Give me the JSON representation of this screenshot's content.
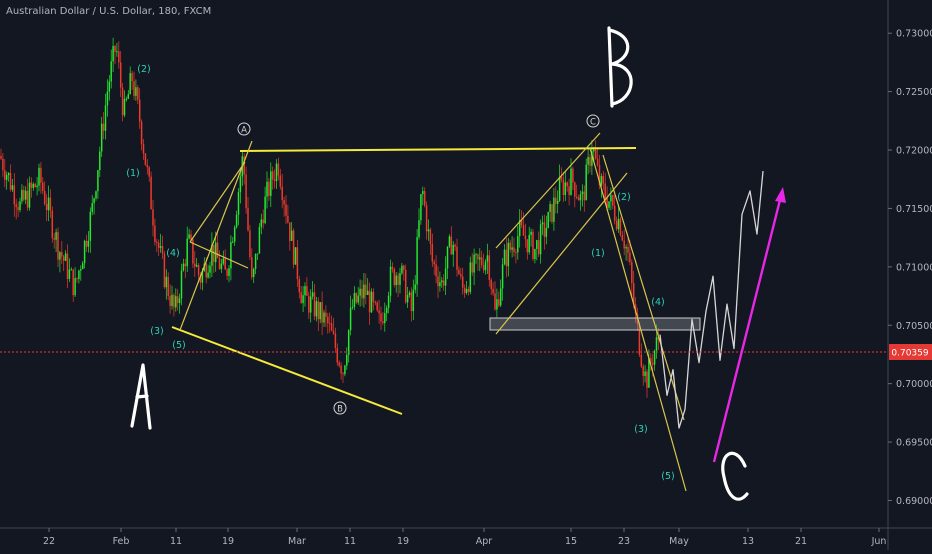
{
  "chart_data": {
    "type": "candlestick",
    "title": "Australian Dollar / U.S. Dollar, 180, FXCM",
    "ylim": [
      0.6885,
      0.7325
    ],
    "y_ticks": [
      "0.73000",
      "0.72500",
      "0.72000",
      "0.71500",
      "0.71000",
      "0.70500",
      "0.70000",
      "0.69500",
      "0.69000"
    ],
    "y_tick_values": [
      0.73,
      0.725,
      0.72,
      0.715,
      0.71,
      0.705,
      0.7,
      0.695,
      0.69
    ],
    "x_ticks": [
      "22",
      "Feb",
      "11",
      "19",
      "Mar",
      "11",
      "19",
      "Apr",
      "15",
      "23",
      "May",
      "13",
      "21",
      "Jun"
    ],
    "current_price": {
      "label": "0.70359",
      "value": 0.70359,
      "color": "#e53935"
    },
    "price_path": [
      [
        0,
        0.7195
      ],
      [
        20,
        0.7152
      ],
      [
        40,
        0.7175
      ],
      [
        58,
        0.7118
      ],
      [
        75,
        0.7082
      ],
      [
        92,
        0.7148
      ],
      [
        108,
        0.7255
      ],
      [
        116,
        0.729
      ],
      [
        124,
        0.723
      ],
      [
        132,
        0.7262
      ],
      [
        140,
        0.7225
      ],
      [
        148,
        0.7175
      ],
      [
        155,
        0.7132
      ],
      [
        165,
        0.709
      ],
      [
        175,
        0.706
      ],
      [
        188,
        0.7122
      ],
      [
        200,
        0.709
      ],
      [
        212,
        0.7115
      ],
      [
        226,
        0.7092
      ],
      [
        236,
        0.715
      ],
      [
        243,
        0.7195
      ],
      [
        252,
        0.7082
      ],
      [
        262,
        0.7145
      ],
      [
        268,
        0.7165
      ],
      [
        278,
        0.719
      ],
      [
        290,
        0.713
      ],
      [
        302,
        0.7075
      ],
      [
        315,
        0.7065
      ],
      [
        328,
        0.705
      ],
      [
        343,
        0.7012
      ],
      [
        352,
        0.7065
      ],
      [
        365,
        0.708
      ],
      [
        380,
        0.705
      ],
      [
        390,
        0.709
      ],
      [
        400,
        0.7098
      ],
      [
        412,
        0.706
      ],
      [
        422,
        0.7168
      ],
      [
        432,
        0.7105
      ],
      [
        442,
        0.7085
      ],
      [
        452,
        0.7125
      ],
      [
        462,
        0.708
      ],
      [
        475,
        0.71
      ],
      [
        488,
        0.711
      ],
      [
        495,
        0.706
      ],
      [
        505,
        0.7108
      ],
      [
        520,
        0.713
      ],
      [
        535,
        0.7115
      ],
      [
        548,
        0.7138
      ],
      [
        560,
        0.7168
      ],
      [
        572,
        0.7175
      ],
      [
        582,
        0.7155
      ],
      [
        592,
        0.7205
      ],
      [
        600,
        0.717
      ],
      [
        610,
        0.7155
      ],
      [
        620,
        0.7138
      ],
      [
        628,
        0.711
      ],
      [
        636,
        0.7052
      ],
      [
        646,
        0.7002
      ],
      [
        652,
        0.7022
      ],
      [
        660,
        0.7042
      ]
    ],
    "projection_path": [
      [
        660,
        0.7042
      ],
      [
        667,
        0.699
      ],
      [
        673,
        0.7012
      ],
      [
        679,
        0.6962
      ],
      [
        685,
        0.6978
      ],
      [
        692,
        0.7055
      ],
      [
        699,
        0.7018
      ],
      [
        706,
        0.7062
      ],
      [
        713,
        0.7092
      ],
      [
        720,
        0.702
      ],
      [
        727,
        0.7068
      ],
      [
        734,
        0.703
      ],
      [
        742,
        0.7145
      ],
      [
        750,
        0.7165
      ],
      [
        757,
        0.7128
      ],
      [
        763,
        0.7182
      ]
    ],
    "wave_labels": [
      "(2)",
      "(1)",
      "(4)",
      "(3)",
      "(5)",
      "(2)",
      "(1)",
      "(4)",
      "(3)",
      "(5)"
    ],
    "circled_labels": [
      "A",
      "B",
      "C"
    ],
    "big_labels": [
      "A",
      "B",
      "C"
    ],
    "colors": {
      "background": "#131722",
      "bull": "#26e82f",
      "bear": "#ef3b2c",
      "trendline": "#f5eb3b",
      "channel": "#d8c64a",
      "arrow": "#e628e6",
      "projection": "#d6d6d6",
      "wave_label": "#2fd1b5"
    }
  }
}
